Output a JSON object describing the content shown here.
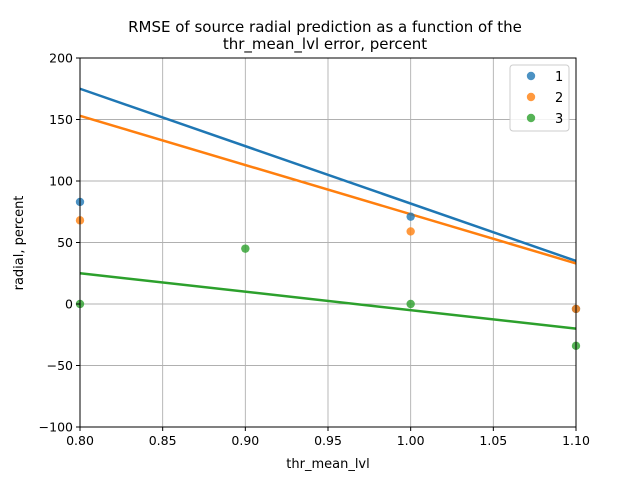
{
  "chart_data": {
    "type": "scatter",
    "title_lines": [
      "RMSE of source radial prediction as a function of the",
      "thr_mean_lvl error, percent"
    ],
    "xlabel": "thr_mean_lvl",
    "ylabel": "radial, percent",
    "xlim": [
      0.8,
      1.1
    ],
    "ylim": [
      -100,
      200
    ],
    "xticks": [
      0.8,
      0.85,
      0.9,
      0.95,
      1.0,
      1.05,
      1.1
    ],
    "xtick_labels": [
      "0.80",
      "0.85",
      "0.90",
      "0.95",
      "1.00",
      "1.05",
      "1.10"
    ],
    "yticks": [
      -100,
      -50,
      0,
      50,
      100,
      150,
      200
    ],
    "ytick_labels": [
      "−100",
      "−50",
      "0",
      "50",
      "100",
      "150",
      "200"
    ],
    "grid": true,
    "legend_position": "top-right",
    "series": [
      {
        "name": "1",
        "color": "#1f77b4",
        "points": [
          {
            "x": 0.8,
            "y": 83
          },
          {
            "x": 1.0,
            "y": 71
          },
          {
            "x": 1.1,
            "y": -4
          }
        ],
        "fit_line": [
          {
            "x": 0.8,
            "y": 175
          },
          {
            "x": 1.1,
            "y": 35
          }
        ]
      },
      {
        "name": "2",
        "color": "#ff7f0e",
        "points": [
          {
            "x": 0.8,
            "y": 68
          },
          {
            "x": 1.0,
            "y": 59
          },
          {
            "x": 1.1,
            "y": -4
          }
        ],
        "fit_line": [
          {
            "x": 0.8,
            "y": 153
          },
          {
            "x": 1.1,
            "y": 33
          }
        ]
      },
      {
        "name": "3",
        "color": "#2ca02c",
        "points": [
          {
            "x": 0.8,
            "y": 0
          },
          {
            "x": 0.9,
            "y": 45
          },
          {
            "x": 1.0,
            "y": 0
          },
          {
            "x": 1.1,
            "y": -34
          }
        ],
        "fit_line": [
          {
            "x": 0.8,
            "y": 25
          },
          {
            "x": 1.1,
            "y": -20
          }
        ]
      }
    ]
  }
}
